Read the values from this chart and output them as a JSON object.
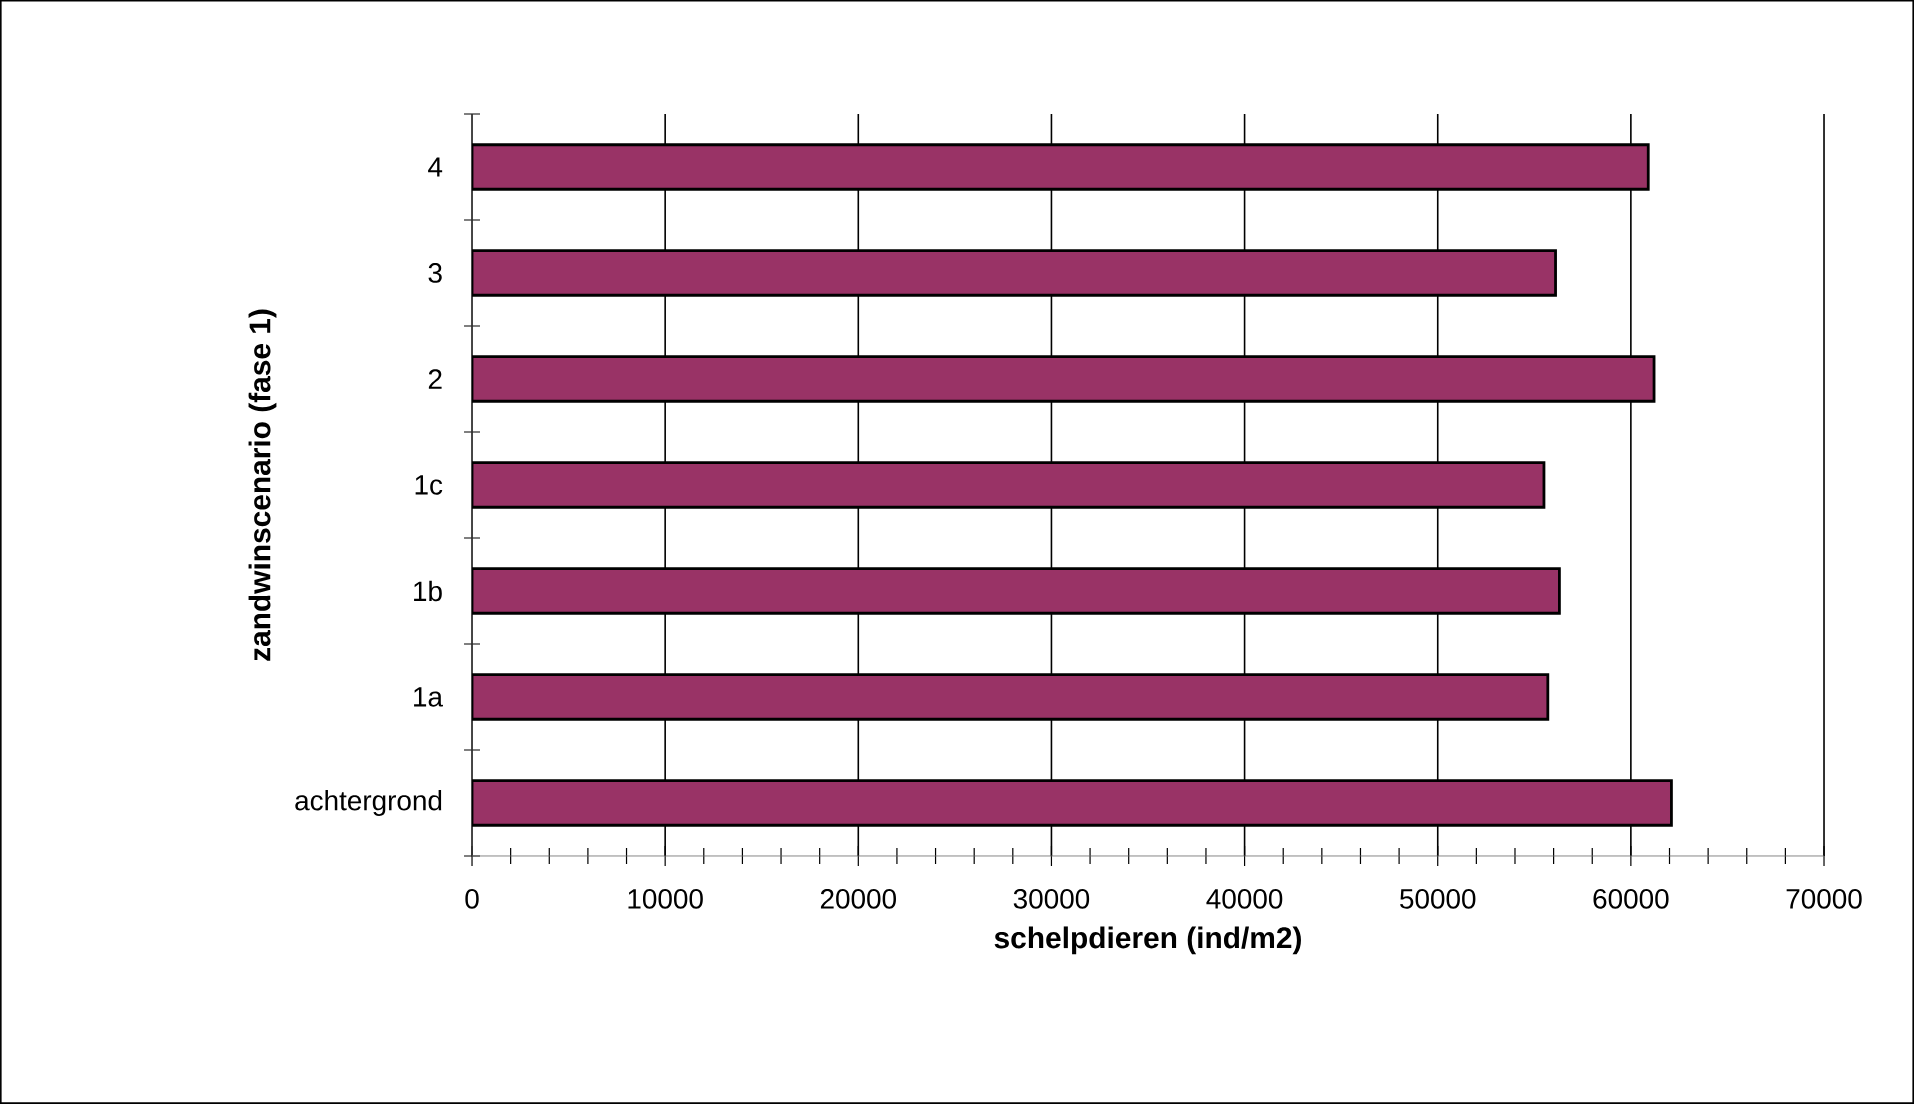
{
  "chart_data": {
    "type": "bar",
    "orientation": "horizontal",
    "xlabel": "schelpdieren (ind/m2)",
    "ylabel": "zandwinscenario (fase 1)",
    "categories": [
      "4",
      "3",
      "2",
      "1c",
      "1b",
      "1a",
      "achtergrond"
    ],
    "values": [
      60900,
      56100,
      61200,
      55500,
      56300,
      55700,
      62100
    ],
    "color": "#993366",
    "xlim": [
      0,
      70000
    ],
    "xticks": [
      0,
      10000,
      20000,
      30000,
      40000,
      50000,
      60000,
      70000
    ],
    "grid": "x"
  }
}
